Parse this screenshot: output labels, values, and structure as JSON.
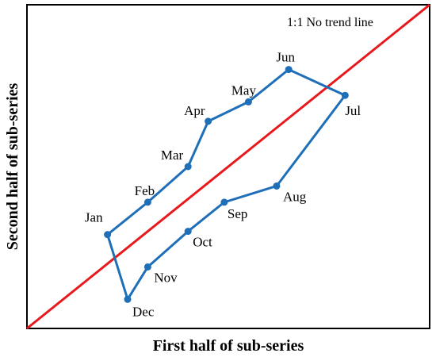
{
  "chart_data": {
    "type": "line",
    "title": "",
    "xlabel": "First half of sub-series",
    "ylabel": "Second half of sub-series",
    "annotation": "1:1 No trend line",
    "xlim": [
      0,
      1
    ],
    "ylim": [
      0,
      1
    ],
    "grid": false,
    "ticks_shown": false,
    "colors": {
      "series": "#1f6fb8",
      "reference": "#e8191c",
      "frame": "#000000"
    },
    "reference_line": {
      "name": "1:1 No trend line",
      "x": [
        0,
        1
      ],
      "y": [
        0,
        1
      ]
    },
    "series": [
      {
        "points": [
          {
            "label": "Jan",
            "x": 0.2,
            "y": 0.29
          },
          {
            "label": "Feb",
            "x": 0.3,
            "y": 0.39
          },
          {
            "label": "Mar",
            "x": 0.4,
            "y": 0.5
          },
          {
            "label": "Apr",
            "x": 0.45,
            "y": 0.64
          },
          {
            "label": "May",
            "x": 0.55,
            "y": 0.7
          },
          {
            "label": "Jun",
            "x": 0.65,
            "y": 0.8
          },
          {
            "label": "Jul",
            "x": 0.79,
            "y": 0.72
          },
          {
            "label": "Aug",
            "x": 0.62,
            "y": 0.44
          },
          {
            "label": "Sep",
            "x": 0.49,
            "y": 0.39
          },
          {
            "label": "Oct",
            "x": 0.4,
            "y": 0.3
          },
          {
            "label": "Nov",
            "x": 0.3,
            "y": 0.19
          },
          {
            "label": "Dec",
            "x": 0.25,
            "y": 0.09
          }
        ]
      }
    ]
  }
}
